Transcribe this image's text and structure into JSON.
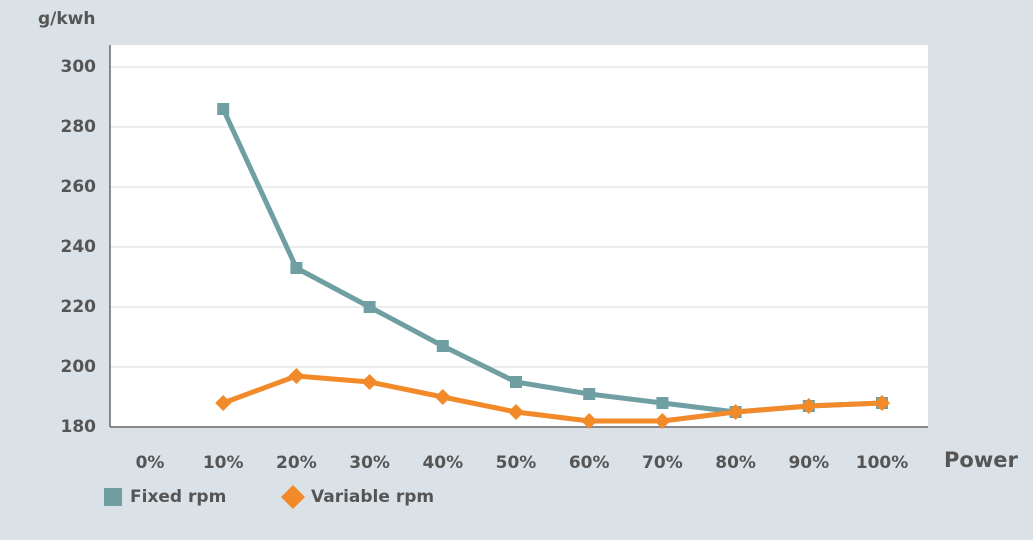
{
  "chart_data": {
    "type": "line",
    "y_label": "g/kwh",
    "x_label": "Power",
    "categories": [
      "0%",
      "10%",
      "20%",
      "30%",
      "40%",
      "50%",
      "60%",
      "70%",
      "80%",
      "90%",
      "100%"
    ],
    "series": [
      {
        "name": "Fixed rpm",
        "color": "#6f9fa3",
        "marker": "square",
        "values": [
          null,
          286,
          233,
          220,
          207,
          195,
          191,
          188,
          185,
          187,
          188
        ]
      },
      {
        "name": "Variable rpm",
        "color": "#f28a2a",
        "marker": "diamond",
        "values": [
          null,
          188,
          197,
          195,
          190,
          185,
          182,
          182,
          185,
          187,
          188
        ]
      }
    ],
    "ylim": [
      180,
      300
    ],
    "yticks": [
      180,
      200,
      220,
      240,
      260,
      280,
      300
    ],
    "grid": true,
    "legend": "bottom-left"
  }
}
